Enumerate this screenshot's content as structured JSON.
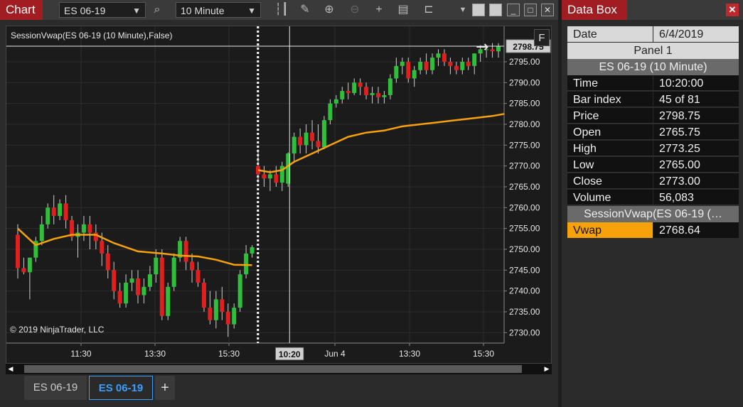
{
  "chart_window": {
    "title": "Chart",
    "instrument": "ES 06-19",
    "interval": "10 Minute",
    "indicator_label": "SessionVwap(ES 06-19 (10 Minute),False)",
    "copyright": "© 2019 NinjaTrader, LLC",
    "f_button": "F",
    "price_marker": "2798.75",
    "time_marker": "10:20",
    "tabs": [
      "ES 06-19",
      "ES 06-19"
    ],
    "add_tab": "+"
  },
  "chart_data": {
    "type": "candlestick",
    "y_ticks": [
      "2795.00",
      "2790.00",
      "2785.00",
      "2780.00",
      "2775.00",
      "2770.00",
      "2765.00",
      "2760.00",
      "2755.00",
      "2750.00",
      "2745.00",
      "2740.00",
      "2735.00",
      "2730.00"
    ],
    "ylim": [
      2727.5,
      2802.5
    ],
    "x_ticks": [
      "11:30",
      "13:30",
      "15:30",
      "Jun 4",
      "13:30",
      "15:30"
    ],
    "candles": [
      [
        2753.5,
        2756,
        2743,
        2745.5
      ],
      [
        2745.5,
        2748,
        2744,
        2744.5
      ],
      [
        2744.5,
        2748,
        2738,
        2748
      ],
      [
        2748,
        2753,
        2747,
        2752
      ],
      [
        2752,
        2758,
        2751,
        2756
      ],
      [
        2756,
        2761,
        2755,
        2760
      ],
      [
        2760,
        2763,
        2756,
        2758
      ],
      [
        2758,
        2762,
        2757,
        2761
      ],
      [
        2761,
        2763,
        2755,
        2757
      ],
      [
        2757,
        2758,
        2752,
        2753
      ],
      [
        2753,
        2756,
        2748,
        2754
      ],
      [
        2754,
        2758,
        2752,
        2756
      ],
      [
        2756,
        2758,
        2750,
        2754
      ],
      [
        2754,
        2756,
        2750,
        2752
      ],
      [
        2752,
        2754,
        2746,
        2749
      ],
      [
        2749,
        2751,
        2743,
        2745
      ],
      [
        2745,
        2747,
        2738,
        2740
      ],
      [
        2740,
        2742,
        2736,
        2737
      ],
      [
        2737,
        2744,
        2736,
        2742
      ],
      [
        2742,
        2745,
        2740,
        2743
      ],
      [
        2743,
        2745,
        2737,
        2739
      ],
      [
        2739,
        2743,
        2737,
        2741
      ],
      [
        2741,
        2746,
        2740,
        2744
      ],
      [
        2744,
        2750,
        2742,
        2748
      ],
      [
        2748,
        2750,
        2733,
        2734
      ],
      [
        2734,
        2742,
        2733,
        2741
      ],
      [
        2741,
        2749,
        2740,
        2748
      ],
      [
        2748,
        2753,
        2747,
        2752
      ],
      [
        2752,
        2753,
        2745,
        2747
      ],
      [
        2747,
        2749,
        2742,
        2745
      ],
      [
        2745,
        2747,
        2741,
        2742
      ],
      [
        2742,
        2743,
        2735,
        2736
      ],
      [
        2736,
        2740,
        2732,
        2733
      ],
      [
        2733,
        2740,
        2731,
        2738
      ],
      [
        2738,
        2741,
        2733,
        2735
      ],
      [
        2735,
        2737,
        2729,
        2732
      ],
      [
        2732,
        2737,
        2731,
        2736
      ],
      [
        2736,
        2745,
        2735,
        2744
      ],
      [
        2744,
        2751,
        2743,
        2749
      ],
      [
        2749,
        2751,
        2748,
        2750.5
      ],
      [
        2770,
        2774,
        2766,
        2768
      ],
      [
        2768,
        2770,
        2765,
        2767
      ],
      [
        2767,
        2769,
        2764,
        2768
      ],
      [
        2768,
        2770,
        2765,
        2766
      ],
      [
        2766,
        2771,
        2764,
        2770
      ],
      [
        2765.75,
        2773.25,
        2765,
        2773
      ],
      [
        2773,
        2778,
        2771,
        2777
      ],
      [
        2777,
        2779,
        2773,
        2775
      ],
      [
        2775,
        2780,
        2773,
        2778
      ],
      [
        2778,
        2781,
        2774,
        2776
      ],
      [
        2776,
        2780,
        2773,
        2774.5
      ],
      [
        2774.5,
        2782,
        2774,
        2781
      ],
      [
        2781,
        2786,
        2780,
        2785
      ],
      [
        2785,
        2787,
        2784,
        2786
      ],
      [
        2786,
        2789,
        2785,
        2788
      ],
      [
        2788,
        2790,
        2786,
        2787.5
      ],
      [
        2787.5,
        2791,
        2787,
        2790
      ],
      [
        2790,
        2791,
        2787,
        2789
      ],
      [
        2789,
        2790,
        2786,
        2787
      ],
      [
        2787,
        2789,
        2785,
        2787.5
      ],
      [
        2787.5,
        2789,
        2785,
        2786.5
      ],
      [
        2786.5,
        2788,
        2785,
        2787
      ],
      [
        2787,
        2792,
        2786,
        2791
      ],
      [
        2791,
        2796,
        2790,
        2794
      ],
      [
        2794,
        2796,
        2792,
        2795
      ],
      [
        2795,
        2796,
        2790,
        2791
      ],
      [
        2791,
        2794,
        2789,
        2793
      ],
      [
        2793,
        2796,
        2792,
        2795
      ],
      [
        2795,
        2797,
        2792,
        2793
      ],
      [
        2793,
        2797,
        2792,
        2796
      ],
      [
        2796,
        2798,
        2794,
        2797
      ],
      [
        2797,
        2798,
        2794,
        2795
      ],
      [
        2795,
        2796,
        2792,
        2794
      ],
      [
        2794,
        2795,
        2792,
        2793
      ],
      [
        2793,
        2796,
        2792,
        2795
      ],
      [
        2795,
        2796,
        2793,
        2794
      ],
      [
        2794,
        2797,
        2792,
        2797
      ],
      [
        2797,
        2799,
        2795,
        2798
      ],
      [
        2798,
        2799,
        2796,
        2798
      ],
      [
        2798,
        2799.5,
        2796,
        2797.5
      ],
      [
        2797.5,
        2799.5,
        2796,
        2798.75
      ]
    ],
    "vwap": [
      [
        0,
        2755
      ],
      [
        3,
        2751
      ],
      [
        6,
        2752.5
      ],
      [
        9,
        2753.5
      ],
      [
        13,
        2753.5
      ],
      [
        16,
        2751.5
      ],
      [
        20,
        2749.5
      ],
      [
        24,
        2749
      ],
      [
        27,
        2748.5
      ],
      [
        30,
        2748.3
      ],
      [
        33,
        2747.5
      ],
      [
        36,
        2746.3
      ],
      [
        39,
        2746.2
      ],
      [
        null,
        null
      ],
      [
        40,
        2769
      ],
      [
        42,
        2768.5
      ],
      [
        44,
        2769
      ],
      [
        46,
        2771
      ],
      [
        49,
        2773
      ],
      [
        52,
        2775
      ],
      [
        55,
        2777
      ],
      [
        58,
        2778
      ],
      [
        61,
        2778.5
      ],
      [
        64,
        2779.5
      ],
      [
        67,
        2780
      ],
      [
        70,
        2780.5
      ],
      [
        73,
        2781
      ],
      [
        76,
        2781.5
      ],
      [
        79,
        2782
      ],
      [
        81,
        2782.5
      ]
    ],
    "session_break_index": 39.5,
    "crosshair_index": 45,
    "crosshair_price": 2798.75
  },
  "data_box": {
    "title": "Data Box",
    "date_label": "Date",
    "date_value": "6/4/2019",
    "panel": "Panel 1",
    "series_header": "ES 06-19 (10 Minute)",
    "rows": [
      {
        "label": "Time",
        "value": "10:20:00"
      },
      {
        "label": "Bar index",
        "value": "45 of 81"
      },
      {
        "label": "Price",
        "value": "2798.75"
      },
      {
        "label": "Open",
        "value": "2765.75"
      },
      {
        "label": "High",
        "value": "2773.25"
      },
      {
        "label": "Low",
        "value": "2765.00"
      },
      {
        "label": "Close",
        "value": "2773.00"
      },
      {
        "label": "Volume",
        "value": "56,083"
      }
    ],
    "indicator_header": "SessionVwap(ES 06-19 (…",
    "vwap_label": "Vwap",
    "vwap_value": "2768.64"
  },
  "colors": {
    "up": "#2fbf3a",
    "down": "#e0201e",
    "vwap": "#f7a20b",
    "accent": "#a11d21"
  }
}
